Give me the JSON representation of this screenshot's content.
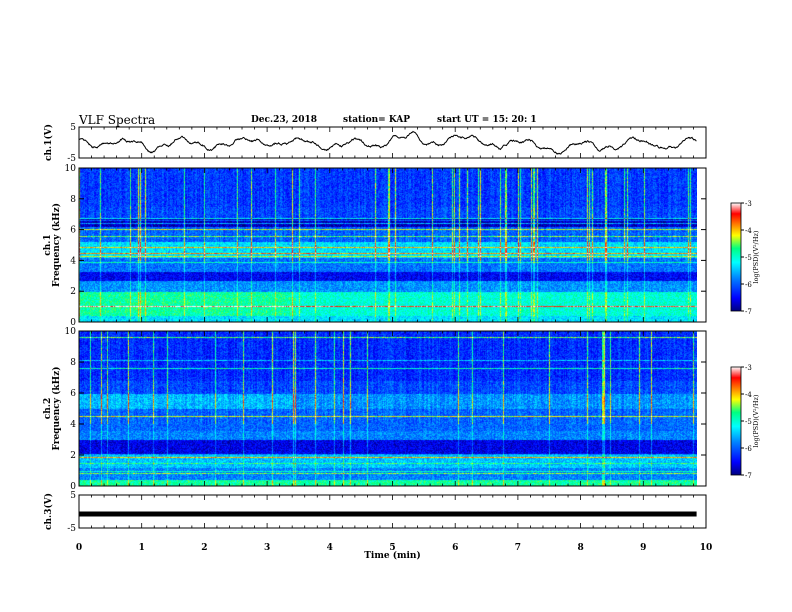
{
  "header": {
    "title": "VLF Spectra",
    "date": "Dec.23, 2018",
    "station": "station= KAP",
    "start": "start  UT =   15: 20: 1"
  },
  "chart_data": [
    {
      "type": "line",
      "id": "ch1-waveform",
      "ylabel": "ch.1(V)",
      "ylim": [
        -5,
        5
      ],
      "yticks": [
        "5",
        "-5"
      ],
      "xlim": [
        0,
        10
      ],
      "x_end_data": 9.85
    },
    {
      "type": "heatmap",
      "id": "ch1-spectrogram",
      "ylabel_top": "ch.1",
      "ylabel": "Frequency (kHz)",
      "ylim": [
        0,
        10
      ],
      "yticks": [
        "0",
        "2",
        "4",
        "6",
        "8",
        "10"
      ],
      "xlim": [
        0,
        10
      ],
      "x_end_data": 9.85,
      "colorbar": {
        "label": "log(PSD)(V²/Hz)",
        "range": [
          -7,
          -3
        ],
        "ticks": [
          "-3",
          "-4",
          "-5",
          "-6",
          "-7"
        ]
      }
    },
    {
      "type": "heatmap",
      "id": "ch2-spectrogram",
      "ylabel_top": "ch.2",
      "ylabel": "Frequency (kHz)",
      "ylim": [
        0,
        10
      ],
      "yticks": [
        "0",
        "2",
        "4",
        "6",
        "8",
        "10"
      ],
      "xlim": [
        0,
        10
      ],
      "x_end_data": 9.85,
      "colorbar": {
        "label": "log(PSD)(V²/Hz)",
        "range": [
          -7,
          -3
        ],
        "ticks": [
          "-3",
          "-4",
          "-5",
          "-6",
          "-7"
        ]
      }
    },
    {
      "type": "line",
      "id": "ch3-waveform",
      "ylabel": "ch.3(V)",
      "ylim": [
        -5,
        5
      ],
      "yticks": [
        "5",
        "-5"
      ],
      "xlim": [
        0,
        10
      ],
      "x_end_data": 9.85,
      "constant_value": -1.7,
      "xlabel": "Time  (min)",
      "xticks": [
        "0",
        "1",
        "2",
        "3",
        "4",
        "5",
        "6",
        "7",
        "8",
        "9",
        "10"
      ]
    }
  ],
  "colors": {
    "waveform": "#000000",
    "colormap": [
      "#000080",
      "#0000ff",
      "#0080ff",
      "#00ffff",
      "#00ff80",
      "#ffff00",
      "#ff8000",
      "#ff0000",
      "#ffffff"
    ]
  }
}
